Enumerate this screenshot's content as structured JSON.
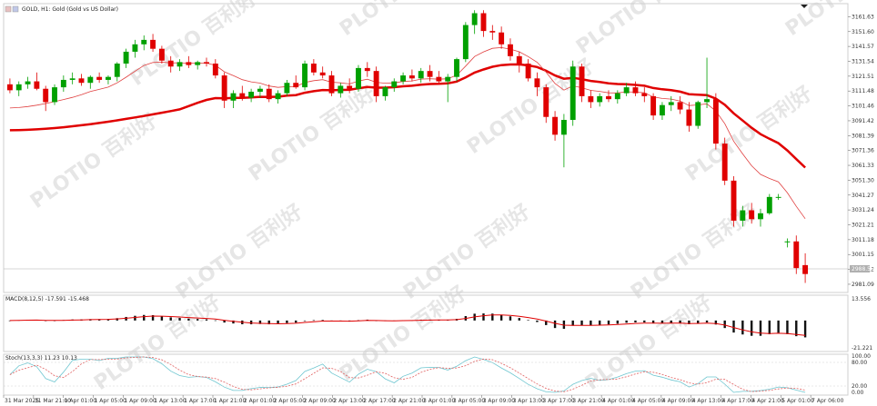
{
  "header": {
    "symbol_line": "GOLD, H1:  Gold (Gold vs US Dollar)"
  },
  "watermark": {
    "text": "PLOTIO 百利好"
  },
  "price_axis": {
    "ticks": [
      "3161.63",
      "3151.60",
      "3141.57",
      "3131.54",
      "3121.51",
      "3111.48",
      "3101.46",
      "3091.42",
      "3081.39",
      "3071.36",
      "3061.33",
      "3051.30",
      "3041.27",
      "3031.24",
      "3021.21",
      "3011.18",
      "3001.15",
      "2991.12",
      "2981.09"
    ],
    "current_price": "2988.55"
  },
  "time_axis": {
    "labels": [
      "31 Mar 2025",
      "31 Mar 21:00",
      "1 Apr 01:00",
      "1 Apr 05:00",
      "1 Apr 09:00",
      "1 Apr 13:00",
      "1 Apr 17:00",
      "1 Apr 21:00",
      "2 Apr 01:00",
      "2 Apr 05:00",
      "2 Apr 09:00",
      "2 Apr 13:00",
      "2 Apr 17:00",
      "2 Apr 21:00",
      "3 Apr 01:00",
      "3 Apr 05:00",
      "3 Apr 09:00",
      "3 Apr 13:00",
      "3 Apr 17:00",
      "3 Apr 21:00",
      "4 Apr 01:00",
      "4 Apr 05:00",
      "4 Apr 09:00",
      "4 Apr 13:00",
      "4 Apr 17:00",
      "4 Apr 21:00",
      "5 Apr 01:00",
      "7 Apr 06:00"
    ]
  },
  "macd": {
    "label": "MACD(8,12,5) -17.591 -15.468",
    "ticks": [
      "13.556",
      "-21.221"
    ]
  },
  "stoch": {
    "label": "Stoch(13,3,3) 11.23 10.13",
    "ticks": [
      "100.00",
      "80.00",
      "20.00",
      "0.00"
    ]
  },
  "colors": {
    "bull": "#00a000",
    "bear": "#e00000",
    "ma_fast": "#e04040",
    "ma_slow": "#e00000",
    "stoch_main": "#6ec6d0",
    "stoch_signal": "#e06060"
  },
  "chart_data": {
    "type": "candlestick",
    "symbol": "GOLD",
    "timeframe": "H1",
    "ylim": [
      2978,
      3168
    ],
    "candles": [
      [
        3116,
        3120,
        3110,
        3112
      ],
      [
        3112,
        3118,
        3108,
        3116
      ],
      [
        3116,
        3121,
        3113,
        3118
      ],
      [
        3118,
        3124,
        3112,
        3113
      ],
      [
        3113,
        3115,
        3098,
        3104
      ],
      [
        3104,
        3116,
        3102,
        3114
      ],
      [
        3114,
        3122,
        3111,
        3119
      ],
      [
        3119,
        3124,
        3116,
        3120
      ],
      [
        3120,
        3123,
        3115,
        3117
      ],
      [
        3117,
        3122,
        3113,
        3121
      ],
      [
        3121,
        3124,
        3117,
        3119
      ],
      [
        3119,
        3122,
        3116,
        3121
      ],
      [
        3121,
        3131,
        3118,
        3130
      ],
      [
        3130,
        3140,
        3127,
        3138
      ],
      [
        3138,
        3146,
        3134,
        3143
      ],
      [
        3143,
        3149,
        3139,
        3146
      ],
      [
        3146,
        3150,
        3138,
        3140
      ],
      [
        3140,
        3142,
        3130,
        3132
      ],
      [
        3132,
        3135,
        3124,
        3128
      ],
      [
        3128,
        3133,
        3125,
        3131
      ],
      [
        3131,
        3135,
        3127,
        3129
      ],
      [
        3129,
        3132,
        3126,
        3131
      ],
      [
        3131,
        3134,
        3128,
        3130
      ],
      [
        3130,
        3133,
        3120,
        3122
      ],
      [
        3122,
        3124,
        3100,
        3105
      ],
      [
        3105,
        3112,
        3100,
        3110
      ],
      [
        3110,
        3115,
        3105,
        3107
      ],
      [
        3107,
        3113,
        3104,
        3111
      ],
      [
        3111,
        3115,
        3107,
        3113
      ],
      [
        3113,
        3116,
        3104,
        3106
      ],
      [
        3106,
        3112,
        3103,
        3110
      ],
      [
        3110,
        3119,
        3108,
        3117
      ],
      [
        3117,
        3122,
        3113,
        3114
      ],
      [
        3114,
        3132,
        3112,
        3130
      ],
      [
        3130,
        3133,
        3122,
        3124
      ],
      [
        3124,
        3128,
        3120,
        3122
      ],
      [
        3122,
        3125,
        3108,
        3110
      ],
      [
        3110,
        3117,
        3107,
        3115
      ],
      [
        3115,
        3120,
        3110,
        3113
      ],
      [
        3113,
        3129,
        3111,
        3127
      ],
      [
        3127,
        3131,
        3121,
        3125
      ],
      [
        3125,
        3128,
        3104,
        3108
      ],
      [
        3108,
        3115,
        3105,
        3114
      ],
      [
        3114,
        3120,
        3111,
        3118
      ],
      [
        3118,
        3124,
        3116,
        3122
      ],
      [
        3122,
        3126,
        3118,
        3120
      ],
      [
        3120,
        3127,
        3117,
        3125
      ],
      [
        3125,
        3129,
        3118,
        3121
      ],
      [
        3121,
        3125,
        3116,
        3118
      ],
      [
        3118,
        3123,
        3104,
        3121
      ],
      [
        3121,
        3134,
        3118,
        3133
      ],
      [
        3133,
        3158,
        3131,
        3156
      ],
      [
        3156,
        3166,
        3150,
        3164
      ],
      [
        3164,
        3166,
        3148,
        3152
      ],
      [
        3152,
        3156,
        3146,
        3151
      ],
      [
        3151,
        3155,
        3140,
        3143
      ],
      [
        3143,
        3147,
        3132,
        3135
      ],
      [
        3135,
        3138,
        3124,
        3130
      ],
      [
        3130,
        3133,
        3118,
        3120
      ],
      [
        3120,
        3124,
        3108,
        3114
      ],
      [
        3114,
        3116,
        3090,
        3094
      ],
      [
        3094,
        3098,
        3078,
        3082
      ],
      [
        3082,
        3096,
        3060,
        3092
      ],
      [
        3092,
        3132,
        3088,
        3128
      ],
      [
        3128,
        3130,
        3104,
        3108
      ],
      [
        3108,
        3112,
        3100,
        3104
      ],
      [
        3104,
        3110,
        3101,
        3108
      ],
      [
        3108,
        3112,
        3104,
        3106
      ],
      [
        3106,
        3112,
        3103,
        3110
      ],
      [
        3110,
        3117,
        3108,
        3114
      ],
      [
        3114,
        3118,
        3108,
        3110
      ],
      [
        3110,
        3114,
        3104,
        3108
      ],
      [
        3108,
        3110,
        3092,
        3095
      ],
      [
        3095,
        3104,
        3092,
        3102
      ],
      [
        3102,
        3108,
        3098,
        3104
      ],
      [
        3104,
        3108,
        3096,
        3099
      ],
      [
        3099,
        3104,
        3084,
        3088
      ],
      [
        3088,
        3105,
        3086,
        3104
      ],
      [
        3104,
        3134,
        3100,
        3106
      ],
      [
        3106,
        3110,
        3072,
        3076
      ],
      [
        3076,
        3080,
        3048,
        3051
      ],
      [
        3051,
        3054,
        3020,
        3024
      ],
      [
        3024,
        3034,
        3020,
        3031
      ],
      [
        3031,
        3036,
        3022,
        3025
      ],
      [
        3025,
        3032,
        3020,
        3029
      ],
      [
        3029,
        3042,
        3028,
        3040
      ],
      [
        3040,
        3042,
        3038,
        3040
      ],
      [
        3010,
        3012,
        3006,
        3010
      ],
      [
        3010,
        3014,
        2988,
        2992
      ],
      [
        2994,
        3002,
        2982,
        2988
      ]
    ]
  }
}
